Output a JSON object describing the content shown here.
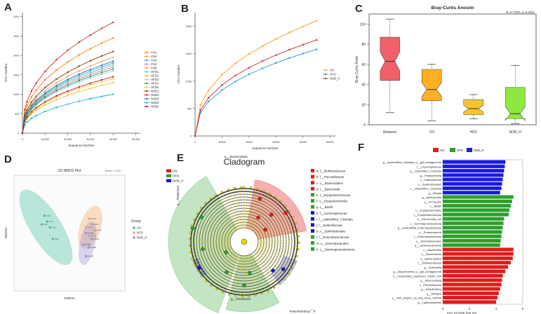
{
  "panels": {
    "A": {
      "label": "A"
    },
    "B": {
      "label": "B"
    },
    "C": {
      "label": "C"
    },
    "D": {
      "label": "D"
    },
    "E": {
      "label": "E"
    },
    "F": {
      "label": "F"
    }
  },
  "chart_data": [
    {
      "id": "A",
      "type": "line",
      "title": "",
      "xlabel": "Sequence Number",
      "ylabel": "OTU Number",
      "x": [
        0,
        1000,
        2000,
        4000,
        6000,
        10000,
        15000,
        20000,
        25000,
        30000,
        35000,
        40000
      ],
      "xticks": [
        "0",
        "10,000",
        "20,000",
        "30,000",
        "40,000",
        "50,000"
      ],
      "xtick_values": [
        0,
        10000,
        20000,
        30000,
        40000,
        50000
      ],
      "xlim": [
        0,
        52000
      ],
      "yticks": [
        "0",
        "500",
        "1000",
        "1500",
        "2000",
        "2500",
        "3000"
      ],
      "ylim": [
        0,
        3100
      ],
      "series": [
        {
          "name": "CN1",
          "color": "#ff7f0e",
          "final": 2450
        },
        {
          "name": "CN2",
          "color": "#f5a623",
          "final": 2100
        },
        {
          "name": "CN3",
          "color": "#4aa3df",
          "final": 1800
        },
        {
          "name": "CN4",
          "color": "#e377c2",
          "final": 1700
        },
        {
          "name": "CN5",
          "color": "#ff9966",
          "final": 1950
        },
        {
          "name": "HFD1",
          "color": "#66cc99",
          "final": 1750
        },
        {
          "name": "HFD2",
          "color": "#ffbb33",
          "final": 1300
        },
        {
          "name": "HFD3",
          "color": "#99ccff",
          "final": 1600
        },
        {
          "name": "HFD4",
          "color": "#2ca02c",
          "final": 1650
        },
        {
          "name": "HFD5",
          "color": "#f4c542",
          "final": 1400
        },
        {
          "name": "NOB1",
          "color": "#8b4513",
          "final": 2100
        },
        {
          "name": "NOB2",
          "color": "#d62728",
          "final": 2850
        },
        {
          "name": "NOB3",
          "color": "#1f77b4",
          "final": 1850
        },
        {
          "name": "NOB4",
          "color": "#00bcd4",
          "final": 1000
        },
        {
          "name": "NOB5",
          "color": "#b22222",
          "final": 1450
        }
      ]
    },
    {
      "id": "B",
      "type": "line",
      "title": "",
      "xlabel": "Sequence Number",
      "ylabel": "OTU Number",
      "x": [
        0,
        2000,
        5000,
        10000,
        15000,
        20000,
        25000,
        30000,
        35000,
        40000,
        45000
      ],
      "xticks": [
        "0",
        "10000",
        "20000",
        "30000",
        "40000",
        "50000"
      ],
      "xtick_values": [
        0,
        10000,
        20000,
        30000,
        40000,
        50000
      ],
      "xlim": [
        0,
        52000
      ],
      "yticks": [
        "0",
        "500",
        "1000",
        "1500",
        "2000"
      ],
      "ylim": [
        0,
        2250
      ],
      "series": [
        {
          "name": "CN",
          "color": "#ff9f1c",
          "final": 2100
        },
        {
          "name": "HFD",
          "color": "#1f9bde",
          "final": 1580
        },
        {
          "name": "NOB_H",
          "color": "#d62728",
          "final": 1750
        }
      ]
    },
    {
      "id": "C",
      "type": "boxplot",
      "title": "Bray-Curtis Anosim",
      "annotation": "R=0.7403; p=0.0011",
      "xlabel": "",
      "ylabel": "Bray-Curtis Rank",
      "categories": [
        "Between",
        "CN",
        "HFD",
        "NOB_H"
      ],
      "colors": [
        "#f0606a",
        "#ffb020",
        "#f4c430",
        "#8fe840"
      ],
      "yticks": [
        "0",
        "20",
        "40",
        "60",
        "80",
        "100"
      ],
      "ylim": [
        0,
        110
      ],
      "boxes": [
        {
          "min": 12,
          "q1": 44,
          "median": 63,
          "q3": 87,
          "max": 105
        },
        {
          "min": 4,
          "q1": 24,
          "median": 35,
          "q3": 55,
          "max": 60
        },
        {
          "min": 6,
          "q1": 10,
          "median": 16,
          "q3": 25,
          "max": 30
        },
        {
          "min": 1,
          "q1": 6,
          "median": 11,
          "q3": 37,
          "max": 59
        }
      ]
    },
    {
      "id": "D",
      "type": "scatter",
      "title": "2D NMDS Plot",
      "stress_label": "stress = 0.082",
      "xlabel": "NMDS1",
      "ylabel": "NMDS2",
      "xlim": [
        -0.2,
        0.2
      ],
      "ylim": [
        -0.2,
        0.2
      ],
      "legend_title": "Group",
      "groups": [
        {
          "name": "CN",
          "color": "#3fbf9f",
          "points": [
            [
              -0.09,
              0.06
            ],
            [
              -0.08,
              0.04
            ],
            [
              -0.1,
              0.03
            ],
            [
              -0.07,
              0.02
            ],
            [
              -0.06,
              -0.02
            ]
          ],
          "labels": [
            "CN4",
            "CN1",
            "CN3",
            "CN2",
            "CN5"
          ]
        },
        {
          "name": "HFD",
          "color": "#f4a460",
          "points": [
            [
              0.07,
              0.05
            ],
            [
              0.08,
              0.03
            ],
            [
              0.06,
              0.02
            ],
            [
              0.09,
              0.01
            ],
            [
              0.07,
              -0.01
            ]
          ],
          "labels": [
            "HFD2",
            "HFD1",
            "HFD4",
            "HFD3",
            "HFD5"
          ]
        },
        {
          "name": "NOB_H",
          "color": "#9b8fd0",
          "points": [
            [
              0.06,
              0.0
            ],
            [
              0.08,
              -0.02
            ],
            [
              0.05,
              -0.04
            ],
            [
              0.07,
              -0.05
            ],
            [
              0.06,
              -0.08
            ]
          ],
          "labels": [
            "NOB1",
            "NOB2",
            "NOB3",
            "NOB4",
            "NOB5"
          ]
        }
      ]
    },
    {
      "id": "E",
      "type": "cladogram",
      "title": "Cladogram",
      "legend": [
        {
          "name": "CN",
          "color": "#e41a1c"
        },
        {
          "name": "HFD",
          "color": "#2ca02c"
        },
        {
          "name": "NOB_H",
          "color": "#1a1ab8"
        }
      ],
      "sector_labels": [
        "p__Bacteroidota",
        "p__Firmicutes",
        "p__Proteobacteria",
        "g__Roseburia"
      ],
      "taxa": [
        {
          "key": "a",
          "name": "f__Muribaculaceae",
          "group": "CN"
        },
        {
          "key": "b",
          "name": "f__Prevotellaceae",
          "group": "CN"
        },
        {
          "key": "c",
          "name": "o__Bacteroidales",
          "group": "CN"
        },
        {
          "key": "d",
          "name": "c__Bacteroidia",
          "group": "CN"
        },
        {
          "key": "e",
          "name": "f__Erysipelotrichaceae",
          "group": "HFD"
        },
        {
          "key": "f",
          "name": "o__Erysipelotrichales",
          "group": "HFD"
        },
        {
          "key": "g",
          "name": "c__Bacilli",
          "group": "HFD"
        },
        {
          "key": "h",
          "name": "f__Lachnospiraceae",
          "group": "NOB_H"
        },
        {
          "key": "i",
          "name": "f__unidentified_Clostridia",
          "group": "NOB_H"
        },
        {
          "key": "j",
          "name": "f__Sutterellaceae",
          "group": "NOB_H"
        },
        {
          "key": "k",
          "name": "o__Burkholderiales",
          "group": "NOB_H"
        },
        {
          "key": "l",
          "name": "f__Enterobacteriaceae",
          "group": "HFD"
        },
        {
          "key": "m",
          "name": "o__Enterobacterales",
          "group": "HFD"
        },
        {
          "key": "n",
          "name": "c__Gammaproteobacteria",
          "group": "HFD"
        }
      ]
    },
    {
      "id": "F",
      "type": "bar",
      "orientation": "horizontal",
      "title": "",
      "xlabel": "LDA SCORE (log 10)",
      "xticks": [
        "0",
        "2",
        "4",
        "6"
      ],
      "xlim": [
        0,
        6
      ],
      "legend": [
        {
          "name": "CN",
          "color": "#e41a1c"
        },
        {
          "name": "HFD",
          "color": "#2ca02c"
        },
        {
          "name": "NOB_H",
          "color": "#1a1ae0"
        }
      ],
      "bars": [
        {
          "label": "g__unidentified_Clostridia_s__gut_metagenome",
          "group": "NOB_H",
          "value": 4.7
        },
        {
          "label": "f__Lachnospiraceae",
          "group": "NOB_H",
          "value": 4.65
        },
        {
          "label": "g__unidentified_Clostridia",
          "group": "NOB_H",
          "value": 4.6
        },
        {
          "label": "g__Parasutterella",
          "group": "NOB_H",
          "value": 4.55
        },
        {
          "label": "f__Sutterellaceae",
          "group": "NOB_H",
          "value": 4.5
        },
        {
          "label": "o__Burkholderiales",
          "group": "NOB_H",
          "value": 4.45
        },
        {
          "label": "f__unidentified_Clostridia",
          "group": "NOB_H",
          "value": 4.4
        },
        {
          "label": "g__Blautia",
          "group": "NOB_H",
          "value": 4.3
        },
        {
          "label": "g__Allobaculum",
          "group": "HFD",
          "value": 5.3
        },
        {
          "label": "p__Firmicutes",
          "group": "HFD",
          "value": 5.2
        },
        {
          "label": "c__Bacilli",
          "group": "HFD",
          "value": 5.1
        },
        {
          "label": "o__Erysipelotrichales",
          "group": "HFD",
          "value": 5.0
        },
        {
          "label": "f__Erysipelotrichaceae",
          "group": "HFD",
          "value": 4.95
        },
        {
          "label": "s__Escherichia_coli",
          "group": "HFD",
          "value": 4.6
        },
        {
          "label": "c__Gammaproteobacteria",
          "group": "HFD",
          "value": 4.55
        },
        {
          "label": "g__unidentified_Enterobacteriaceae",
          "group": "HFD",
          "value": 4.5
        },
        {
          "label": "p__Proteobacteria",
          "group": "HFD",
          "value": 4.45
        },
        {
          "label": "f__Enterobacteriaceae",
          "group": "HFD",
          "value": 4.4
        },
        {
          "label": "o__Enterobacterales",
          "group": "HFD",
          "value": 4.35
        },
        {
          "label": "g__Lachnoclostridium",
          "group": "HFD",
          "value": 4.3
        },
        {
          "label": "c__Bacteroidia",
          "group": "CN",
          "value": 5.3
        },
        {
          "label": "p__Bacteroidota",
          "group": "CN",
          "value": 5.3
        },
        {
          "label": "o__Bacteroidales",
          "group": "CN",
          "value": 5.25
        },
        {
          "label": "f__Muribaculaceae",
          "group": "CN",
          "value": 5.1
        },
        {
          "label": "g__Dubosiella",
          "group": "CN",
          "value": 4.9
        },
        {
          "label": "g__Alloprevotella_s__gut_metagenome",
          "group": "CN",
          "value": 4.7
        },
        {
          "label": "s__Clostridiales_bacterium_CIEAF_020",
          "group": "CN",
          "value": 4.5
        },
        {
          "label": "g__Alloprevotella",
          "group": "CN",
          "value": 4.45
        },
        {
          "label": "f__Prevotellaceae",
          "group": "CN",
          "value": 4.4
        },
        {
          "label": "g__Desulfovibrio",
          "group": "CN",
          "value": 4.3
        },
        {
          "label": "g__Alistipes",
          "group": "CN",
          "value": 4.2
        },
        {
          "label": "s__TM7_phylum_sp_oral_clone_CW040",
          "group": "CN",
          "value": 4.1
        },
        {
          "label": "g__Ligilactobacillus",
          "group": "CN",
          "value": 4.0
        }
      ]
    }
  ]
}
